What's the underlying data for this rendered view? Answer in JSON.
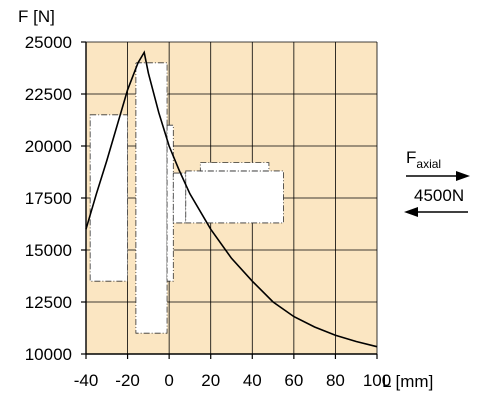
{
  "chart_data": {
    "type": "line",
    "ylabel": "F [N]",
    "xlabel": "L [mm]",
    "xlim": [
      -40,
      100
    ],
    "ylim": [
      10000,
      25000
    ],
    "x_ticks": [
      -40,
      -20,
      0,
      20,
      40,
      60,
      80,
      100
    ],
    "y_ticks": [
      10000,
      12500,
      15000,
      17500,
      20000,
      22500,
      25000
    ],
    "grid": true,
    "background": "#fbe6c2",
    "curve_color": "#000000",
    "series": [
      {
        "x": [
          -40,
          -35,
          -30,
          -25,
          -20,
          -15,
          -12,
          -10,
          -5,
          0,
          5,
          10,
          20,
          30,
          40,
          50,
          60,
          70,
          80,
          90,
          100
        ],
        "y": [
          16000,
          17700,
          19300,
          21000,
          22700,
          24000,
          24500,
          23500,
          21600,
          20000,
          18800,
          17700,
          16000,
          14600,
          13500,
          12500,
          11800,
          11300,
          10900,
          10600,
          10350
        ]
      }
    ],
    "annotations": {
      "force_label": "F",
      "force_subscript": "axial",
      "force_value": "4500N"
    }
  }
}
